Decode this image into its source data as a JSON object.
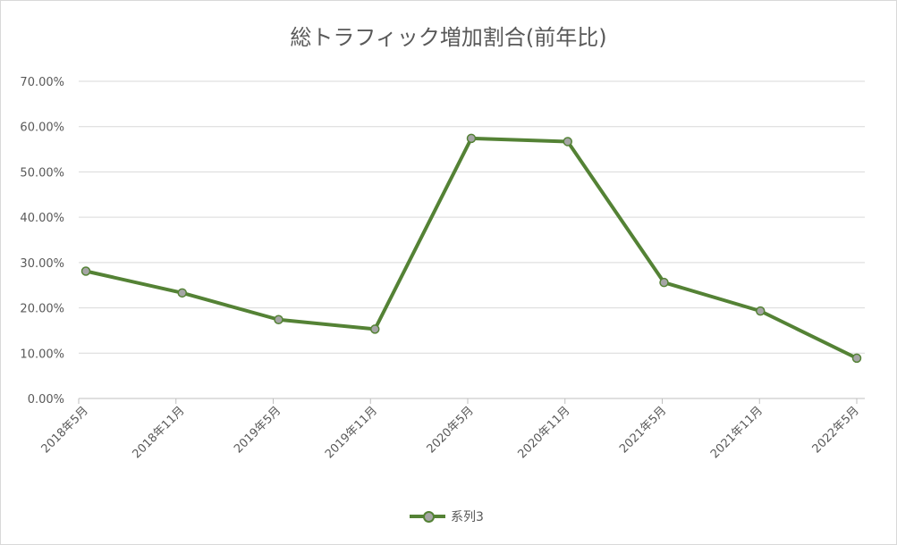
{
  "chart_data": {
    "type": "line",
    "title": "総トラフィック増加割合(前年比)",
    "categories": [
      "2018年5月",
      "2018年11月",
      "2019年5月",
      "2019年11月",
      "2020年5月",
      "2020年11月",
      "2021年5月",
      "2021年11月",
      "2022年5月"
    ],
    "series": [
      {
        "name": "系列3",
        "values": [
          28.1,
          23.3,
          17.4,
          15.3,
          57.4,
          56.7,
          25.6,
          19.3,
          8.9
        ],
        "color": "#548235",
        "marker_fill": "#a5a5a5"
      }
    ],
    "y_ticks": [
      "0.00%",
      "10.00%",
      "20.00%",
      "30.00%",
      "40.00%",
      "50.00%",
      "60.00%",
      "70.00%"
    ],
    "ylim": [
      0,
      70
    ],
    "grid": true,
    "legend_position": "bottom"
  }
}
